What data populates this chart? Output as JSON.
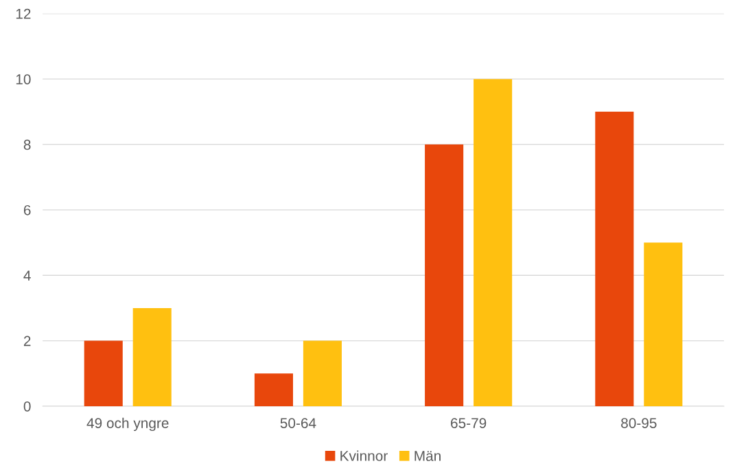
{
  "chart_data": {
    "type": "bar",
    "categories": [
      "49 och yngre",
      "50-64",
      "65-79",
      "80-95"
    ],
    "series": [
      {
        "name": "Kvinnor",
        "color": "#e8470c",
        "values": [
          2,
          1,
          8,
          9
        ]
      },
      {
        "name": "Män",
        "color": "#ffc010",
        "values": [
          3,
          2,
          10,
          5
        ]
      }
    ],
    "ylim": [
      0,
      12
    ],
    "yticks": [
      0,
      2,
      4,
      6,
      8,
      10,
      12
    ],
    "grid": "y",
    "legend": "bottom"
  }
}
